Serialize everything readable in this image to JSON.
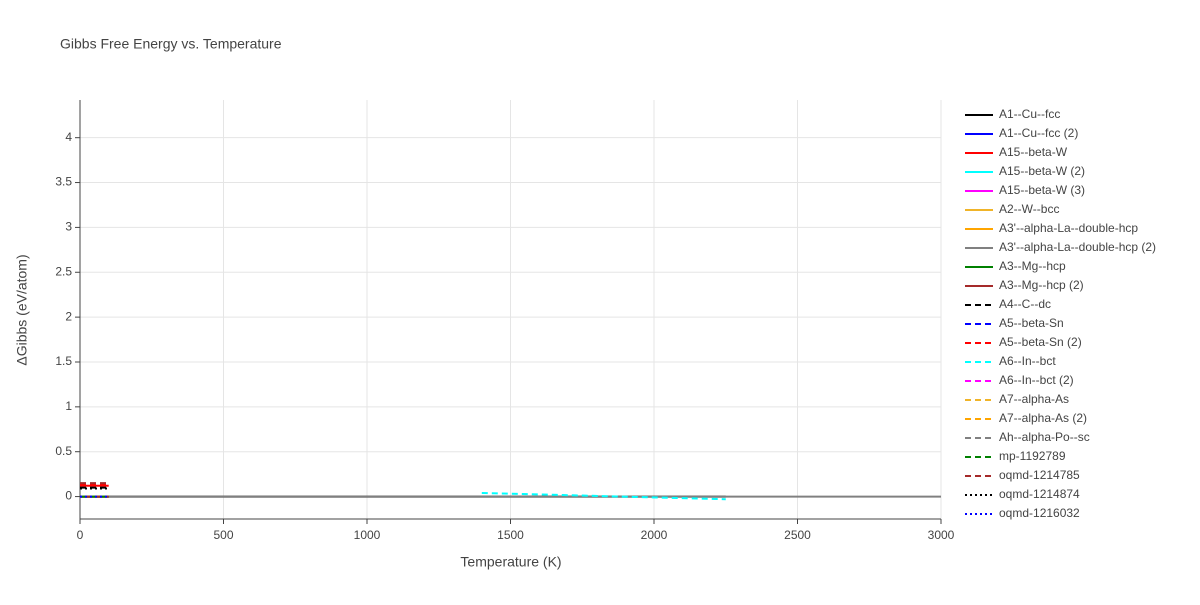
{
  "chart_data": {
    "type": "line",
    "title": "Gibbs Free Energy vs. Temperature",
    "x_label": "Temperature (K)",
    "y_label": "ΔGibbs (eV/atom)",
    "xlim": [
      0,
      3000
    ],
    "ylim": [
      -0.25,
      4.42
    ],
    "xticks": [
      0,
      500,
      1000,
      1500,
      2000,
      2500,
      3000
    ],
    "yticks": [
      0,
      0.5,
      1,
      1.5,
      2,
      2.5,
      3,
      3.5,
      4
    ],
    "grid": true,
    "legend": "right",
    "series": [
      {
        "name": "A1--Cu--fcc",
        "color": "#000000",
        "dash": "solid",
        "x": [
          0,
          2250
        ],
        "values": [
          0,
          0
        ]
      },
      {
        "name": "A1--Cu--fcc (2)",
        "color": "#0000ff",
        "dash": "solid",
        "x": [
          0,
          100
        ],
        "values": [
          0,
          0
        ]
      },
      {
        "name": "A15--beta-W",
        "color": "#ff0000",
        "dash": "solid",
        "x": [
          0,
          100
        ],
        "values": [
          0.12,
          0.12
        ]
      },
      {
        "name": "A15--beta-W (2)",
        "color": "#00ffff",
        "dash": "solid",
        "x": [
          0,
          100
        ],
        "values": [
          0,
          0
        ]
      },
      {
        "name": "A15--beta-W (3)",
        "color": "#ff00ff",
        "dash": "solid",
        "x": [
          0,
          100
        ],
        "values": [
          0,
          0
        ]
      },
      {
        "name": "A2--W--bcc",
        "color": "#f0b429",
        "dash": "solid",
        "x": [
          0,
          100
        ],
        "values": [
          0,
          0
        ]
      },
      {
        "name": "A3'--alpha-La--double-hcp",
        "color": "#ffa500",
        "dash": "solid",
        "x": [
          0,
          100
        ],
        "values": [
          0,
          0
        ]
      },
      {
        "name": "A3'--alpha-La--double-hcp (2)",
        "color": "#808080",
        "dash": "solid",
        "x": [
          0,
          3000
        ],
        "values": [
          0,
          0
        ]
      },
      {
        "name": "A3--Mg--hcp",
        "color": "#008000",
        "dash": "solid",
        "x": [
          0,
          100
        ],
        "values": [
          0,
          0
        ]
      },
      {
        "name": "A3--Mg--hcp (2)",
        "color": "#a52a2a",
        "dash": "solid",
        "x": [
          0,
          100
        ],
        "values": [
          0,
          0
        ]
      },
      {
        "name": "A4--C--dc",
        "color": "#000000",
        "dash": "dash",
        "x": [
          0,
          100
        ],
        "values": [
          0.1,
          0.1
        ]
      },
      {
        "name": "A5--beta-Sn",
        "color": "#0000ff",
        "dash": "dash",
        "x": [
          0,
          100
        ],
        "values": [
          0,
          0
        ]
      },
      {
        "name": "A5--beta-Sn (2)",
        "color": "#ff0000",
        "dash": "dash",
        "x": [
          0,
          100
        ],
        "values": [
          0.13,
          0.13
        ]
      },
      {
        "name": "A6--In--bct",
        "color": "#00ffff",
        "dash": "dash",
        "x": [
          1400,
          2250
        ],
        "values": [
          0.04,
          -0.03
        ]
      },
      {
        "name": "A6--In--bct (2)",
        "color": "#ff00ff",
        "dash": "dash",
        "x": [
          0,
          100
        ],
        "values": [
          0,
          0
        ]
      },
      {
        "name": "A7--alpha-As",
        "color": "#f0b429",
        "dash": "dash",
        "x": [
          0,
          100
        ],
        "values": [
          0,
          0
        ]
      },
      {
        "name": "A7--alpha-As (2)",
        "color": "#ffa500",
        "dash": "dash",
        "x": [
          0,
          100
        ],
        "values": [
          0,
          0
        ]
      },
      {
        "name": "Ah--alpha-Po--sc",
        "color": "#808080",
        "dash": "dash",
        "x": [
          0,
          100
        ],
        "values": [
          0,
          0
        ]
      },
      {
        "name": "mp-1192789",
        "color": "#008000",
        "dash": "dash",
        "x": [
          0,
          100
        ],
        "values": [
          0,
          0
        ]
      },
      {
        "name": "oqmd-1214785",
        "color": "#a52a2a",
        "dash": "dash",
        "x": [
          0,
          100
        ],
        "values": [
          0.15,
          0.15
        ]
      },
      {
        "name": "oqmd-1214874",
        "color": "#000000",
        "dash": "dot",
        "x": [
          0,
          100
        ],
        "values": [
          0.09,
          0.09
        ]
      },
      {
        "name": "oqmd-1216032",
        "color": "#0000ff",
        "dash": "dot",
        "x": [
          0,
          100
        ],
        "values": [
          0,
          0
        ]
      }
    ]
  }
}
